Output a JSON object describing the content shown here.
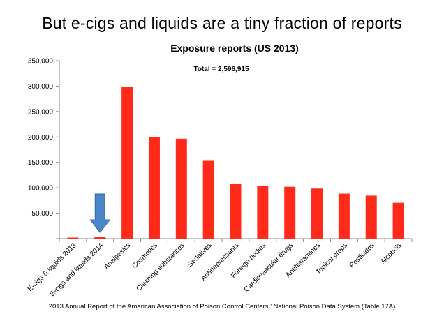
{
  "headline": "But e-cigs and liquids are a tiny fraction of reports",
  "source_note": "2013 Annual Report of the American Association of Poison Control Centers ’ National Poison Data System (Table 17A)",
  "colors": {
    "bar": "#ff2a1a",
    "arrow": "#4a86c8",
    "axis": "#888888"
  },
  "chart_data": {
    "type": "bar",
    "title": "Exposure reports (US 2013)",
    "annotation": "Total =  2,596,915",
    "xlabel": "",
    "ylabel": "",
    "ylim": [
      0,
      350000
    ],
    "yticks": [
      0,
      50000,
      100000,
      150000,
      200000,
      250000,
      300000,
      350000
    ],
    "ytick_labels": [
      "-",
      "50,000",
      "100,000",
      "150,000",
      "200,000",
      "250,000",
      "300,000",
      "350,000"
    ],
    "grid": false,
    "categories": [
      "E-cigs & liquids 2013",
      "E-cigs and liquids 2014",
      "Analgesics",
      "Cosmetics",
      "Cleaning substances",
      "Sedatives",
      "Antidepressants",
      "Foreign bodies",
      "Cardiovascular drugs",
      "Antihistamines",
      "Topical preps",
      "Pesticides",
      "Alcohols"
    ],
    "values": [
      1500,
      3800,
      298000,
      199500,
      196500,
      153000,
      108500,
      103000,
      102000,
      98500,
      88500,
      84500,
      70500
    ],
    "highlight": {
      "category": "E-cigs and liquids 2014",
      "marker": "down-arrow"
    }
  }
}
